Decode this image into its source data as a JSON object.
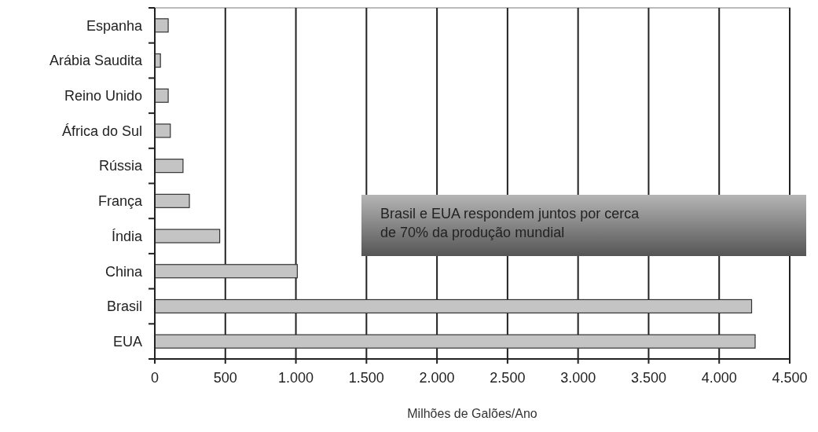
{
  "chart_data": {
    "type": "bar",
    "orientation": "horizontal",
    "xlabel": "Milhões de Galões/Ano",
    "categories": [
      "Espanha",
      "Arábia Saudita",
      "Reino Unido",
      "África do Sul",
      "Rússia",
      "França",
      "Índia",
      "China",
      "Brasil",
      "EUA"
    ],
    "values": [
      95,
      40,
      95,
      110,
      200,
      245,
      460,
      1010,
      4230,
      4255
    ],
    "color": "#c4c4c4",
    "xlim": [
      0,
      4500
    ],
    "xticks": [
      {
        "value": 0,
        "label": "0"
      },
      {
        "value": 500,
        "label": "500"
      },
      {
        "value": 1000,
        "label": "1.000"
      },
      {
        "value": 1500,
        "label": "1.500"
      },
      {
        "value": 2000,
        "label": "2.000"
      },
      {
        "value": 2500,
        "label": "2.500"
      },
      {
        "value": 3000,
        "label": "3.000"
      },
      {
        "value": 3500,
        "label": "3.500"
      },
      {
        "value": 4000,
        "label": "4.000"
      },
      {
        "value": 4500,
        "label": "4.500"
      }
    ],
    "grid": "x",
    "annotations": [
      "Brasil e EUA respondem juntos por cerca de 70% da produção mundial"
    ]
  }
}
